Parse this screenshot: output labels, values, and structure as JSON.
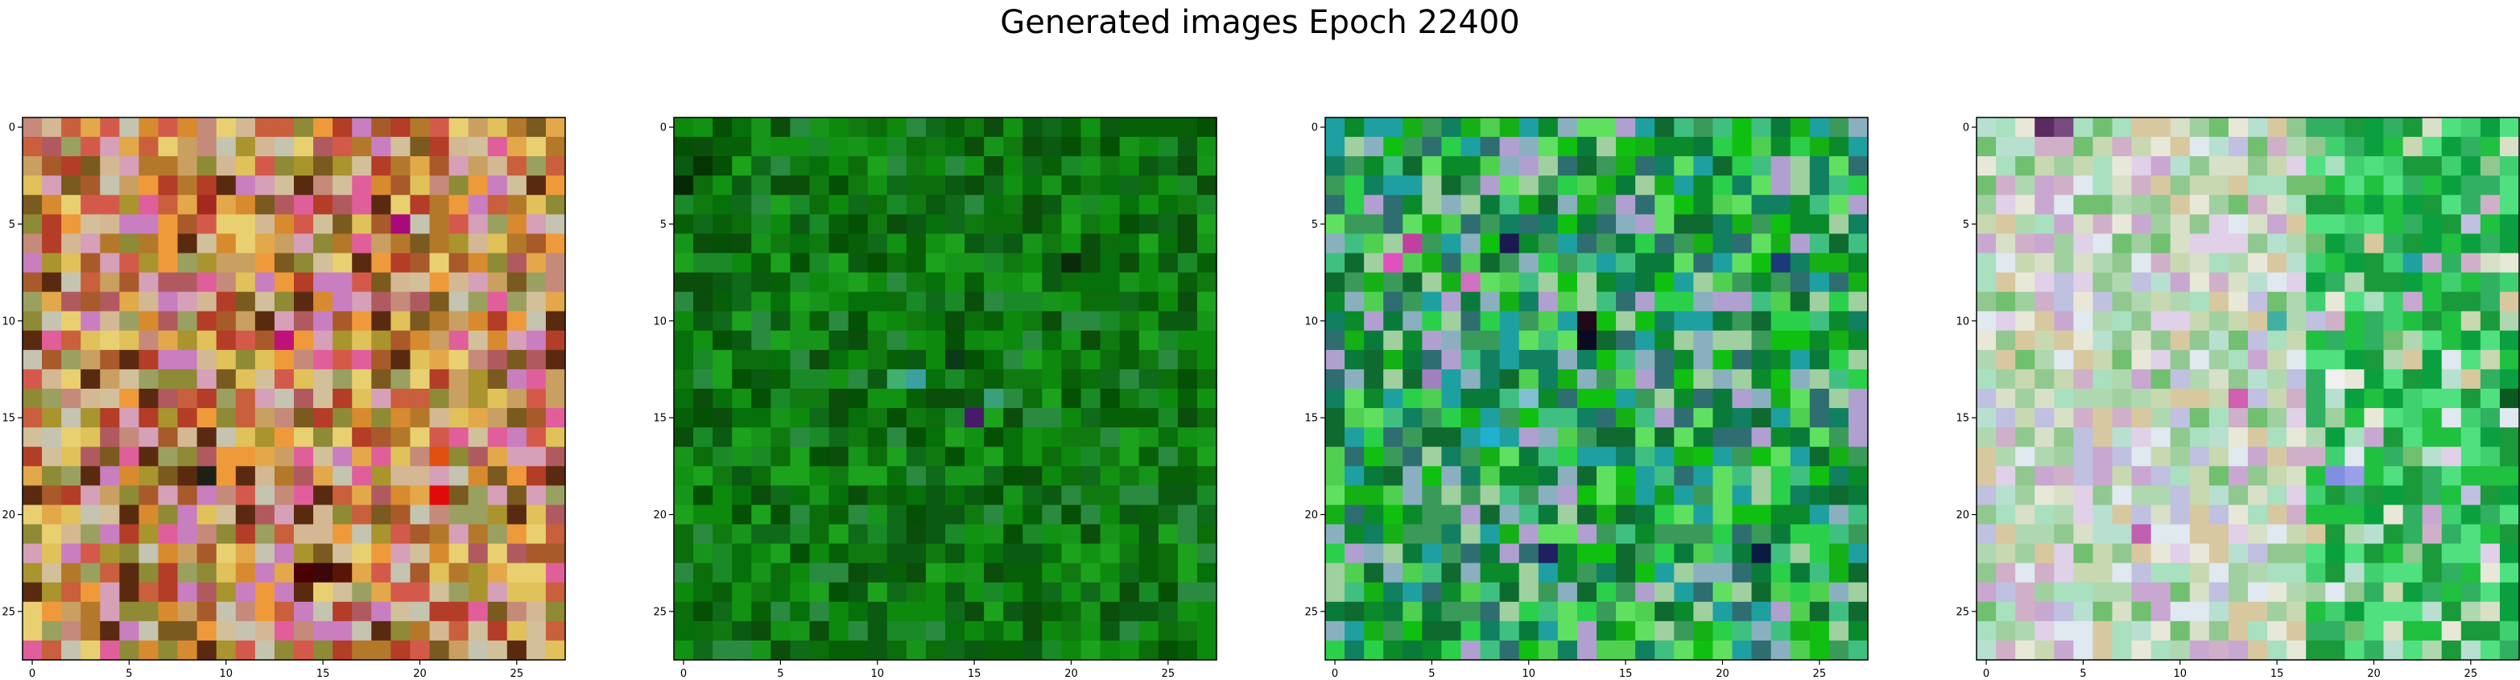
{
  "figure": {
    "suptitle": "Generated images Epoch 22400"
  },
  "colors": {
    "background": "#ffffff",
    "axes_edge": "#000000"
  },
  "chart_data": [
    {
      "type": "heatmap",
      "description": "panel 1: warm palette (orange, red, pink, olive) 28x28 RGB generated image",
      "grid_size": [
        28,
        28
      ],
      "xlim": [
        -0.5,
        27.5
      ],
      "ylim": [
        27.5,
        -0.5
      ],
      "x_ticks": [
        0,
        5,
        10,
        15,
        20,
        25
      ],
      "y_ticks": [
        0,
        5,
        10,
        15,
        20,
        25
      ],
      "palette": [
        "#c9a061",
        "#e3a84a",
        "#d88a2e",
        "#b4782a",
        "#a9942e",
        "#c58a7a",
        "#d4b894",
        "#e0c15a",
        "#c95f3c",
        "#b43d27",
        "#e05f9a",
        "#c97ec0",
        "#8f8a35",
        "#7a5a1e",
        "#d2c09a",
        "#ef9a3a",
        "#a85a2a",
        "#d35a4a",
        "#e8d070",
        "#9aa060",
        "#c4c4b0",
        "#5a2a10",
        "#b05a60",
        "#d6a0b8"
      ],
      "seed": 11,
      "features": [
        {
          "r": 23,
          "c": 14,
          "color": "#4a0000"
        },
        {
          "r": 23,
          "c": 15,
          "color": "#3a0808"
        },
        {
          "r": 23,
          "c": 16,
          "color": "#5a1508"
        },
        {
          "r": 18,
          "c": 9,
          "color": "#1e2018"
        },
        {
          "r": 5,
          "c": 19,
          "color": "#a80a7a"
        },
        {
          "r": 11,
          "c": 13,
          "color": "#c0107a"
        },
        {
          "r": 4,
          "c": 9,
          "color": "#a3281e"
        },
        {
          "r": 19,
          "c": 21,
          "color": "#e00a0a"
        },
        {
          "r": 17,
          "c": 21,
          "color": "#e05010"
        }
      ]
    },
    {
      "type": "heatmap",
      "description": "panel 2: dark and medium green 28x28 RGB generated image",
      "grid_size": [
        28,
        28
      ],
      "xlim": [
        -0.5,
        27.5
      ],
      "ylim": [
        27.5,
        -0.5
      ],
      "x_ticks": [
        0,
        5,
        10,
        15,
        20,
        25
      ],
      "y_ticks": [
        0,
        5,
        10,
        15,
        20,
        25
      ],
      "palette": [
        "#0b6e0b",
        "#107a10",
        "#076007",
        "#0d8a0d",
        "#045004",
        "#17951a",
        "#0a5a12",
        "#1a8a28",
        "#0f6a1a",
        "#06700a",
        "#129212",
        "#0b4d0b",
        "#1ca21c",
        "#2a8a40"
      ],
      "seed": 27,
      "features": [
        {
          "r": 15,
          "c": 15,
          "color": "#4a1a6a"
        },
        {
          "r": 13,
          "c": 12,
          "color": "#3aa0a0"
        },
        {
          "r": 13,
          "c": 11,
          "color": "#40b070"
        },
        {
          "r": 14,
          "c": 16,
          "color": "#3aa07a"
        },
        {
          "r": 7,
          "c": 20,
          "color": "#0a2a0a"
        },
        {
          "r": 12,
          "c": 14,
          "color": "#0a3a1a"
        },
        {
          "r": 2,
          "c": 1,
          "color": "#053505"
        },
        {
          "r": 3,
          "c": 0,
          "color": "#042a04"
        }
      ]
    },
    {
      "type": "heatmap",
      "description": "panel 3: bright green with teal, navy, lavender and magenta pixels 28x28 RGB generated image",
      "grid_size": [
        28,
        28
      ],
      "xlim": [
        -0.5,
        27.5
      ],
      "ylim": [
        27.5,
        -0.5
      ],
      "x_ticks": [
        0,
        5,
        10,
        15,
        20,
        25
      ],
      "y_ticks": [
        0,
        5,
        10,
        15,
        20,
        25
      ],
      "palette": [
        "#15b015",
        "#2ad04a",
        "#0a8a2a",
        "#40c080",
        "#1fa0a0",
        "#0a7a3a",
        "#50d050",
        "#2e6e70",
        "#b0a0d0",
        "#8ab0c0",
        "#a0d0a0",
        "#10c010",
        "#3a9a5a",
        "#60e060",
        "#108060",
        "#0f6a30"
      ],
      "seed": 43,
      "features": [
        {
          "r": 6,
          "c": 4,
          "color": "#c040a0"
        },
        {
          "r": 7,
          "c": 3,
          "color": "#e050c0"
        },
        {
          "r": 8,
          "c": 7,
          "color": "#d070c0"
        },
        {
          "r": 11,
          "c": 13,
          "color": "#0a0a20"
        },
        {
          "r": 10,
          "c": 13,
          "color": "#200a1a"
        },
        {
          "r": 6,
          "c": 9,
          "color": "#1a1a50"
        },
        {
          "r": 22,
          "c": 22,
          "color": "#0a1a40"
        },
        {
          "r": 22,
          "c": 11,
          "color": "#202060"
        },
        {
          "r": 16,
          "c": 8,
          "color": "#20b0d0"
        },
        {
          "r": 19,
          "c": 17,
          "color": "#10a020"
        },
        {
          "r": 13,
          "c": 5,
          "color": "#a080c0"
        },
        {
          "r": 7,
          "c": 23,
          "color": "#1a3a7a"
        },
        {
          "r": 14,
          "c": 10,
          "color": "#80c0d0"
        }
      ]
    },
    {
      "type": "heatmap",
      "description": "panel 4: pale pastel (cream, pink, lavender, mint) with green right side 28x28 RGB generated image",
      "grid_size": [
        28,
        28
      ],
      "xlim": [
        -0.5,
        27.5
      ],
      "ylim": [
        27.5,
        -0.5
      ],
      "x_ticks": [
        0,
        5,
        10,
        15,
        20,
        25
      ],
      "y_ticks": [
        0,
        5,
        10,
        15,
        20,
        25
      ],
      "palette": [
        "#d8e0c8",
        "#c8d8b0",
        "#e0d0e8",
        "#b8e0d0",
        "#d0b0c8",
        "#a0d0a0",
        "#e8e8d8",
        "#c0c0e0",
        "#90c890",
        "#d8c8a0",
        "#a8e0c0",
        "#e0e8f0",
        "#b0d8b0",
        "#c8a8d0",
        "#70c070"
      ],
      "right_palette": [
        "#20c040",
        "#40d070",
        "#0aa040",
        "#30b060",
        "#50e080",
        "#1a9a3a"
      ],
      "seed": 71,
      "features": [
        {
          "r": 0,
          "c": 3,
          "color": "#5a2a60"
        },
        {
          "r": 0,
          "c": 4,
          "color": "#7a4a80"
        },
        {
          "r": 14,
          "c": 13,
          "color": "#d060b0"
        },
        {
          "r": 18,
          "c": 18,
          "color": "#8090e0"
        },
        {
          "r": 18,
          "c": 19,
          "color": "#9aa0e8"
        },
        {
          "r": 21,
          "c": 8,
          "color": "#c060b0"
        },
        {
          "r": 14,
          "c": 27,
          "color": "#0a5a20"
        },
        {
          "r": 10,
          "c": 15,
          "color": "#40b0a0"
        },
        {
          "r": 13,
          "c": 18,
          "color": "#f0f0f0"
        },
        {
          "r": 7,
          "c": 22,
          "color": "#20a0a0"
        }
      ]
    }
  ]
}
